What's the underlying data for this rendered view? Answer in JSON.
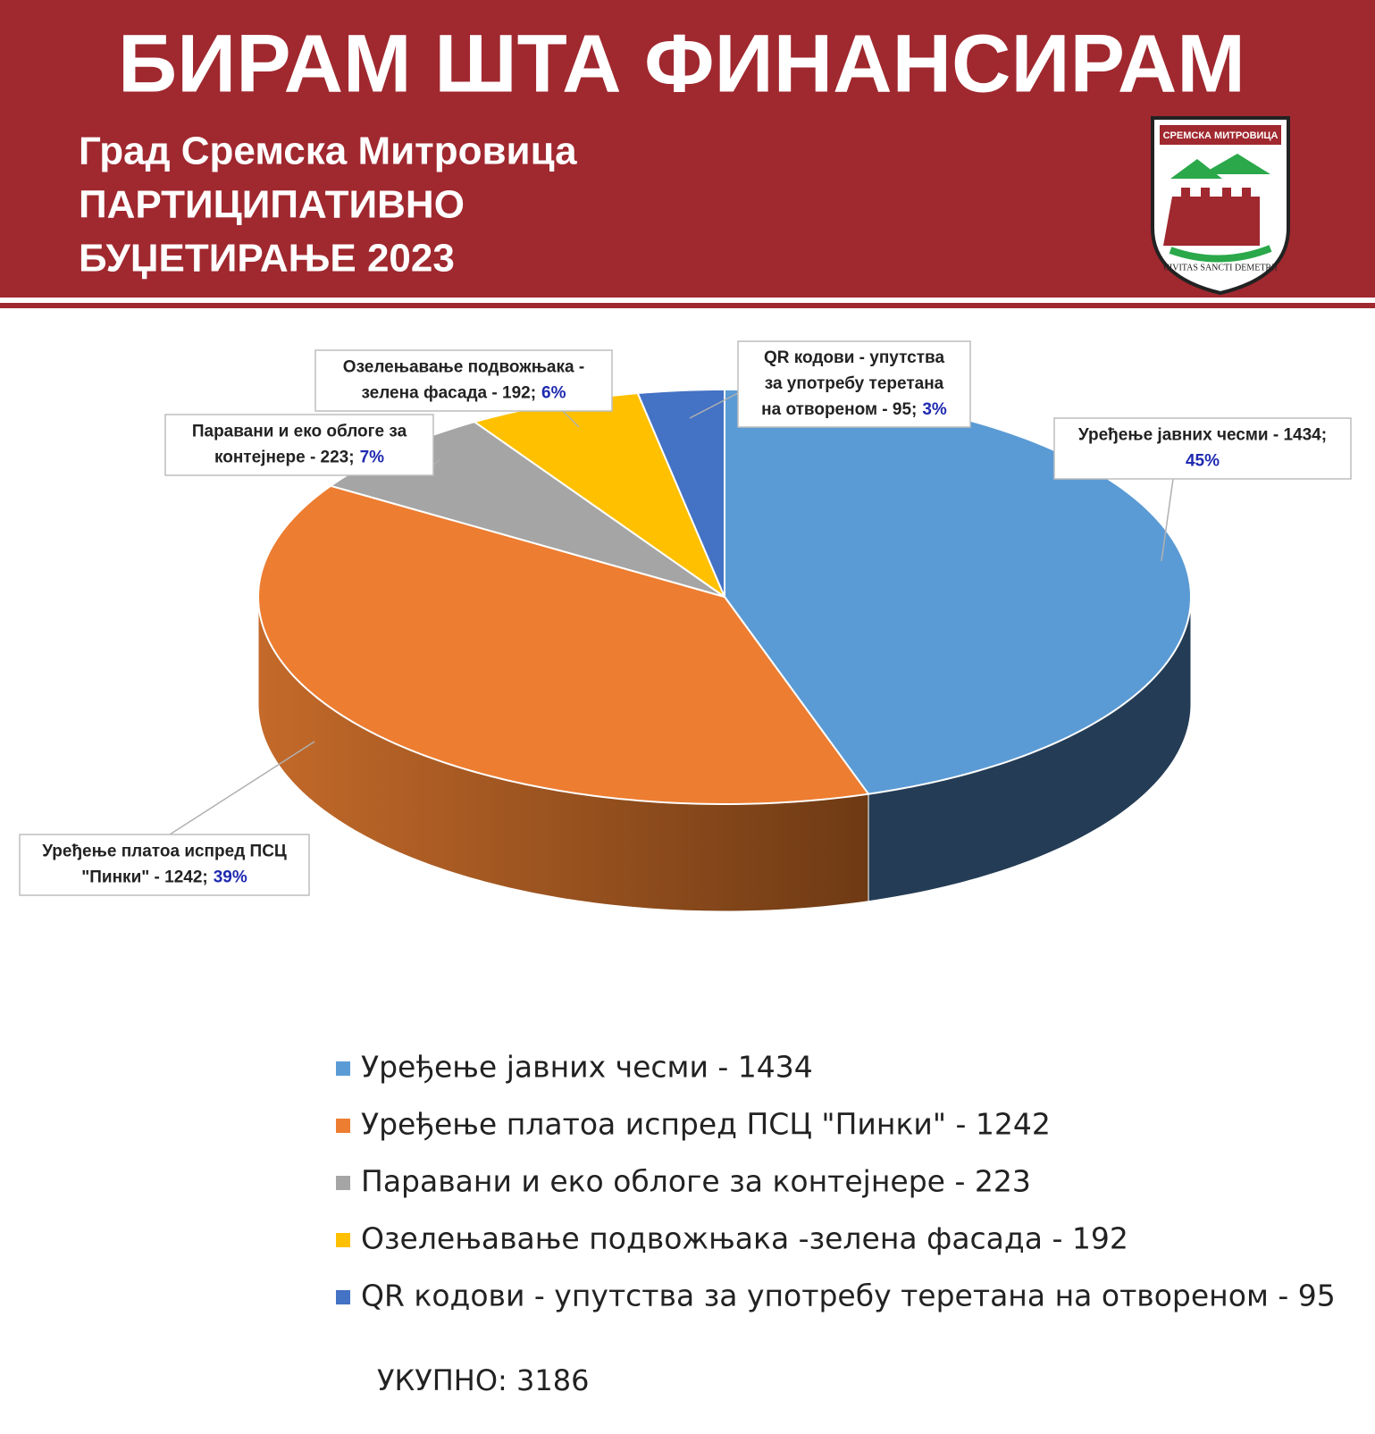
{
  "header": {
    "title": "БИРАМ ШТА ФИНАНСИРАМ",
    "subtitle_lines": [
      "Град Сремска Митровица",
      "ПАРТИЦИПАТИВНО",
      "БУЏЕТИРАЊЕ 2023"
    ],
    "logo": {
      "top_text": "СРЕМСКА МИТРОВИЦА",
      "motto": "CIVITAS SANCTI DEMETRII"
    }
  },
  "chart_data": {
    "type": "pie",
    "three_d": true,
    "categories": [
      "Уређење јавних чесми - 1434",
      "Уређење платоа испред ПСЦ \"Пинки\" - 1242",
      "Паравани и еко облоге за контејнере - 223",
      "Озелењавање подвожњака -зелена фасада - 192",
      "QR кодови - упутства за употребу теретана на отвореном - 95"
    ],
    "values": [
      1434,
      1242,
      223,
      192,
      95
    ],
    "colors": [
      "#5b9bd5",
      "#ed7d31",
      "#a5a5a5",
      "#ffc000",
      "#4472c4"
    ],
    "side_colors": [
      "#243c55",
      "#a0521e",
      "#6e6e6e",
      "#a07800",
      "#2a4780"
    ],
    "data_labels": [
      [
        "Уређење јавних чесми - 1434;"
      ],
      [
        "Уређење платоа испред ПСЦ",
        "\"Пинки\" - 1242;"
      ],
      [
        "Паравани и еко облоге за",
        "контејнере - 223;"
      ],
      [
        "Озелењавање подвожњака -",
        "зелена фасада - 192;"
      ],
      [
        "QR кодови - упутства",
        "за употребу теретана",
        "на отвореном - 95;"
      ]
    ],
    "percent_labels": [
      "45%",
      "39%",
      "7%",
      "6%",
      "3%"
    ],
    "legend": "bottom"
  },
  "total": "УКУПНО: 3186"
}
